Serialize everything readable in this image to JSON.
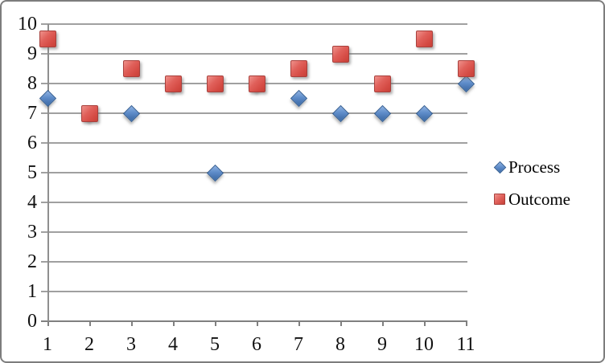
{
  "chart": {
    "legend": {
      "items": [
        {
          "label": "Process",
          "marker": "diamond",
          "color": "#4F81BD"
        },
        {
          "label": "Outcome",
          "marker": "square",
          "color": "#C0504D"
        }
      ]
    }
  },
  "chart_data": {
    "type": "scatter",
    "title": "",
    "xlabel": "",
    "ylabel": "",
    "x": [
      1,
      2,
      3,
      4,
      5,
      6,
      7,
      8,
      9,
      10,
      11
    ],
    "x_tick_labels": [
      "1",
      "2",
      "3",
      "4",
      "5",
      "6",
      "7",
      "8",
      "9",
      "10",
      "11"
    ],
    "y_tick_labels": [
      "0",
      "1",
      "2",
      "3",
      "4",
      "5",
      "6",
      "7",
      "8",
      "9",
      "10"
    ],
    "ylim": [
      0,
      10
    ],
    "grid": true,
    "legend_position": "right",
    "series": [
      {
        "name": "Process",
        "marker": "diamond",
        "color": "#4F81BD",
        "values": [
          7.5,
          7,
          7,
          8,
          5,
          8,
          7.5,
          7,
          7,
          7,
          8
        ]
      },
      {
        "name": "Outcome",
        "marker": "square",
        "color": "#C0504D",
        "values": [
          9.5,
          7,
          8.5,
          8,
          8,
          8,
          8.5,
          9,
          8,
          9.5,
          8.5
        ]
      }
    ]
  }
}
